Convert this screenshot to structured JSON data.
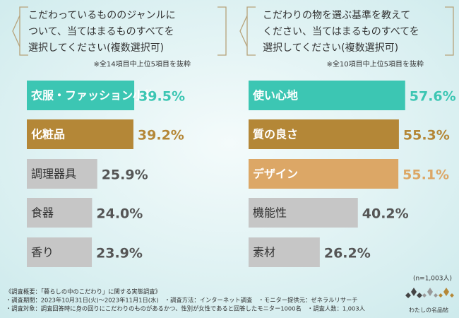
{
  "chart_data": [
    {
      "type": "bar",
      "orientation": "horizontal",
      "title": [
        "こだわっているもののジャンルに",
        "ついて、当てはまるものすべてを",
        "選択してください(複数選択可)"
      ],
      "note": "※全14項目中上位5項目を抜粋",
      "categories": [
        "衣服・ファッション小物",
        "化粧品",
        "調理器具",
        "食器",
        "香り"
      ],
      "values": [
        39.5,
        39.2,
        25.9,
        24.0,
        23.9
      ],
      "value_labels": [
        "39.5%",
        "39.2%",
        "25.9%",
        "24.0%",
        "23.9%"
      ],
      "colors": [
        "#3cc6b3",
        "#b48737",
        "#c6c6c6",
        "#c6c6c6",
        "#c6c6c6"
      ]
    },
    {
      "type": "bar",
      "orientation": "horizontal",
      "title": [
        "こだわりの物を選ぶ基準を教えて",
        "ください、当てはまるものすべてを",
        "選択してください(複数選択可)"
      ],
      "note": "※全10項目中上位5項目を抜粋",
      "categories": [
        "使い心地",
        "質の良さ",
        "デザイン",
        "機能性",
        "素材"
      ],
      "values": [
        57.6,
        55.3,
        55.1,
        40.2,
        26.2
      ],
      "value_labels": [
        "57.6%",
        "55.3%",
        "55.1%",
        "40.2%",
        "26.2%"
      ],
      "colors": [
        "#3cc6b3",
        "#b48737",
        "#dca766",
        "#c6c6c6",
        "#c6c6c6"
      ]
    }
  ],
  "sample_note": "(n=1,003人)",
  "footer": [
    "《調査概要：「暮らしの中のこだわり」に関する実態調査》",
    "・調査期間：2023年10月31日(火)～2023年11月1日(水)　・調査方法：インターネット調査　・モニター提供元：ゼネラルリサーチ",
    "・調査対象：調査回答時に身の回りにこだわりのものがあるかつ、性別が女性であると回答したモニター1000名　・調査人数：1,003人"
  ],
  "logo": "わたしの名品帖"
}
